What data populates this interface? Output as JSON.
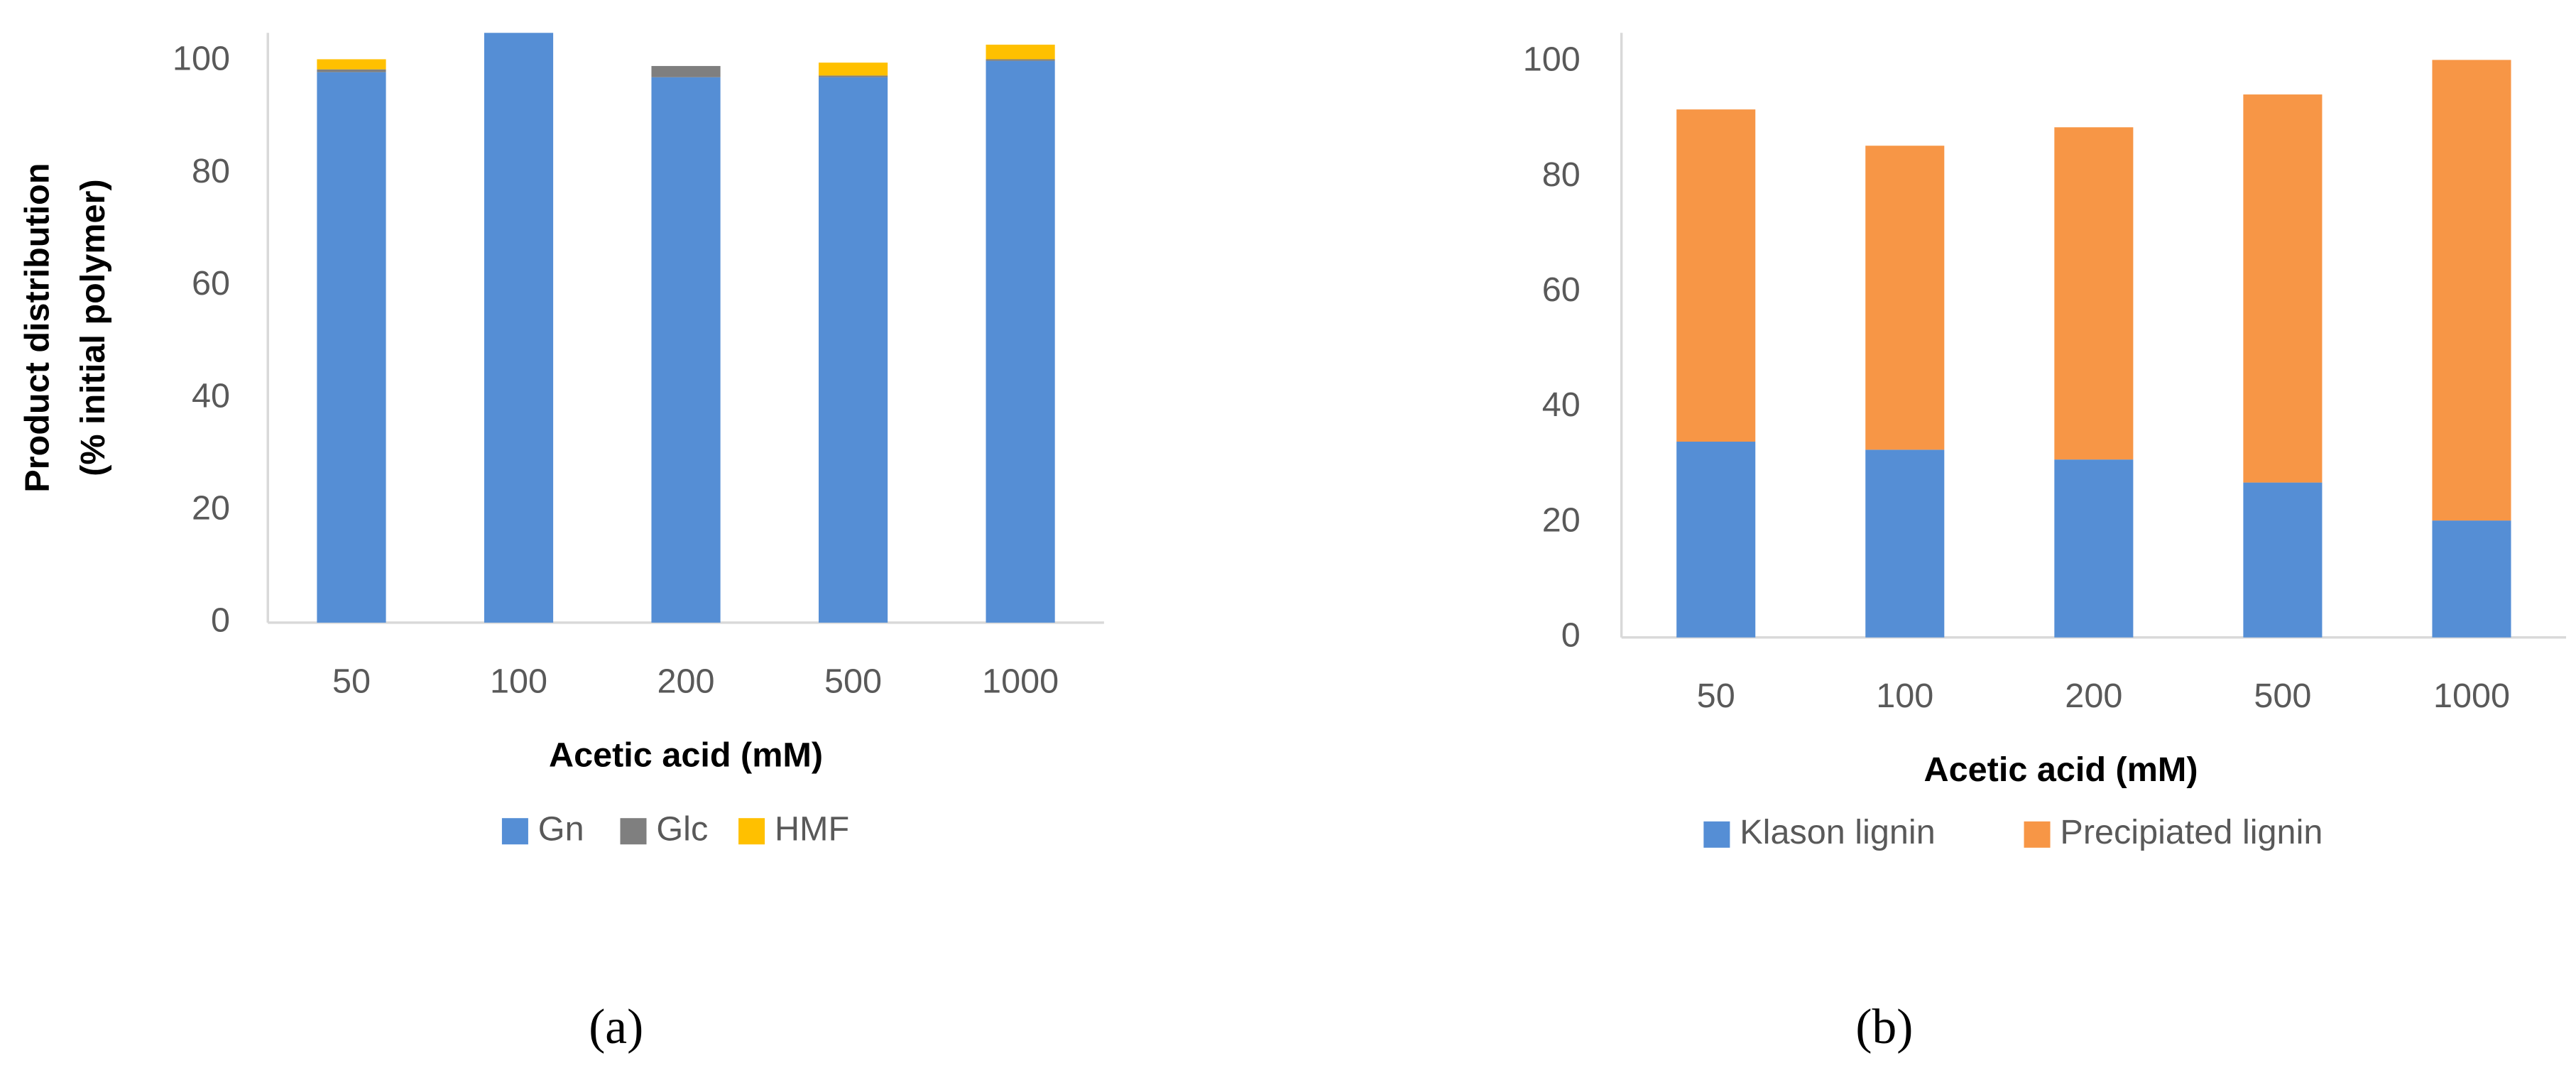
{
  "chart_data": [
    {
      "type": "stacked_bar",
      "panel": "(a)",
      "xlabel": "Acetic acid (mM)",
      "ylabel": [
        "Product distribution",
        "(% initial polymer)"
      ],
      "categories": [
        "50",
        "100",
        "200",
        "500",
        "1000"
      ],
      "series": [
        {
          "name": "Gn",
          "color": "#558ed5",
          "values": [
            98.0,
            105,
            97.1,
            97.1,
            100
          ]
        },
        {
          "name": "Glc",
          "color": "#7f7f7f",
          "values": [
            0.5,
            0,
            2.0,
            0.3,
            0.3
          ]
        },
        {
          "name": "HMF",
          "color": "#ffc000",
          "values": [
            1.8,
            0,
            0,
            2.3,
            2.6
          ]
        }
      ],
      "ylim": [
        0,
        105
      ],
      "yticks": [
        0,
        20,
        40,
        60,
        80,
        100
      ],
      "grid": false,
      "legend": "bottom"
    },
    {
      "type": "stacked_bar",
      "panel": "(b)",
      "xlabel": "Acetic acid (mM)",
      "categories": [
        "50",
        "100",
        "200",
        "500",
        "1000"
      ],
      "series": [
        {
          "name": "Klason lignin",
          "color": "#558ed5",
          "values": [
            34,
            32.6,
            30.9,
            26.9,
            20.3
          ]
        },
        {
          "name": "Precipiated lignin",
          "color": "#f79646",
          "values": [
            57.7,
            52.8,
            57.7,
            67.4,
            80.0
          ]
        }
      ],
      "ylim": [
        0,
        105
      ],
      "yticks": [
        0,
        20,
        40,
        60,
        80,
        100
      ],
      "grid": false,
      "legend": "bottom"
    }
  ]
}
